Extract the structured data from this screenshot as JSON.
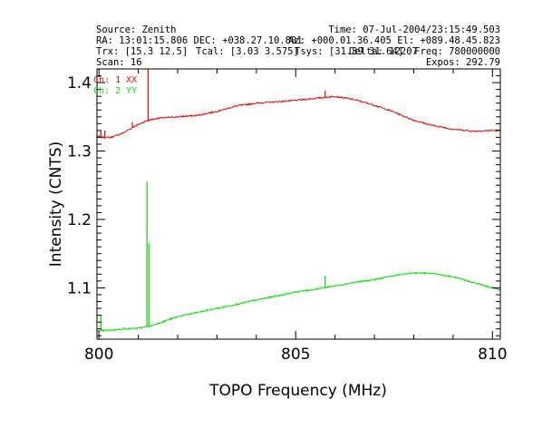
{
  "header": {
    "source": "Source: Zenith",
    "time": "Time: 07-Jul-2004/23:15:49.503",
    "ra_dec": "RA: 13:01:15.806 DEC: +038.27.10.801",
    "az_el": "Az: +000.01.36.405 El: +089.48.45.823",
    "trx": "Trx: [15.3 12.5]",
    "tcal": "Tcal: [3.03 3.575]",
    "tsys": "Tsys: [31.39 31.64]",
    "delta": "Delta: 12207",
    "freq": "Freq: 780000000",
    "scan": "Scan: 16",
    "expos": "Expos: 292.79"
  },
  "colors": {
    "ch1": "#c81e1e",
    "ch2": "#1ed21e",
    "axis": "#000000",
    "background": "#ffffff"
  },
  "chart_data": {
    "type": "line",
    "xlabel": "TOPO Frequency (MHz)",
    "ylabel": "Intensity (CNTS)",
    "xlim": [
      799.95,
      810.2
    ],
    "ylim": [
      1.025,
      1.42
    ],
    "x_ticks": [
      800,
      805,
      810
    ],
    "x_tick_labels": [
      "800",
      "805",
      "810"
    ],
    "y_ticks": [
      1.1,
      1.2,
      1.3,
      1.4
    ],
    "y_tick_labels": [
      "1.1",
      "1.2",
      "1.3",
      "1.4"
    ],
    "legend_placement": "top-left",
    "series": [
      {
        "name": "Ch: 1 XX",
        "color": "#c81e1e",
        "x": [
          799.95,
          800.1,
          800.3,
          800.6,
          800.9,
          801.2,
          801.5,
          802.0,
          802.5,
          803.0,
          803.5,
          804.0,
          804.5,
          805.0,
          805.5,
          806.0,
          806.5,
          807.0,
          807.5,
          808.0,
          808.5,
          809.0,
          809.5,
          810.0,
          810.2
        ],
        "values": [
          1.322,
          1.32,
          1.32,
          1.326,
          1.336,
          1.344,
          1.348,
          1.35,
          1.352,
          1.358,
          1.366,
          1.37,
          1.372,
          1.374,
          1.377,
          1.38,
          1.375,
          1.367,
          1.357,
          1.345,
          1.337,
          1.332,
          1.329,
          1.33,
          1.33
        ]
      },
      {
        "name": "Ch: 2 YY",
        "color": "#1ed21e",
        "x": [
          799.95,
          800.3,
          800.6,
          801.0,
          801.3,
          802.0,
          802.5,
          803.0,
          803.5,
          804.0,
          804.5,
          805.0,
          805.5,
          806.0,
          806.5,
          807.0,
          807.5,
          808.0,
          808.5,
          809.0,
          809.5,
          810.0,
          810.2
        ],
        "values": [
          1.037,
          1.038,
          1.04,
          1.041,
          1.044,
          1.058,
          1.064,
          1.07,
          1.076,
          1.082,
          1.088,
          1.094,
          1.098,
          1.103,
          1.108,
          1.112,
          1.118,
          1.122,
          1.121,
          1.116,
          1.108,
          1.1,
          1.097
        ]
      }
    ],
    "spikes": [
      {
        "series": 0,
        "x": 800.05,
        "peak": 1.33
      },
      {
        "series": 0,
        "x": 800.15,
        "peak": 1.33
      },
      {
        "series": 0,
        "x": 800.85,
        "peak": 1.342
      },
      {
        "series": 0,
        "x": 801.25,
        "peak": 1.42
      },
      {
        "series": 0,
        "x": 805.75,
        "peak": 1.388
      },
      {
        "series": 1,
        "x": 800.05,
        "peak": 1.06
      },
      {
        "series": 1,
        "x": 801.22,
        "peak": 1.255
      },
      {
        "series": 1,
        "x": 801.27,
        "peak": 1.165
      },
      {
        "series": 1,
        "x": 805.75,
        "peak": 1.118
      }
    ]
  }
}
